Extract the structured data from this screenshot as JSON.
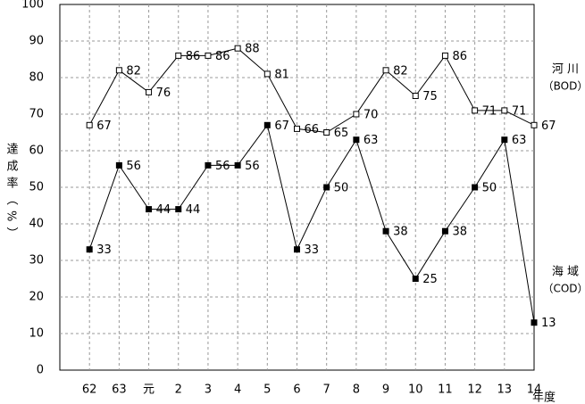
{
  "chart_data": {
    "type": "line",
    "x_label": "年度",
    "y_label": "達成率（%）",
    "categories": [
      "62",
      "63",
      "元",
      "2",
      "3",
      "4",
      "5",
      "6",
      "7",
      "8",
      "9",
      "10",
      "11",
      "12",
      "13",
      "14"
    ],
    "series": [
      {
        "name": "河 川",
        "code": "（BOD）",
        "color": "#000000",
        "marker": "open-square",
        "values": [
          67,
          82,
          76,
          86,
          86,
          88,
          81,
          66,
          65,
          70,
          82,
          75,
          86,
          71,
          71,
          67
        ]
      },
      {
        "name": "海 域",
        "code": "（COD）",
        "color": "#000000",
        "marker": "filled-square",
        "values": [
          33,
          56,
          44,
          44,
          56,
          56,
          67,
          33,
          50,
          63,
          38,
          25,
          38,
          50,
          63,
          13
        ]
      }
    ],
    "ylim": [
      0,
      100
    ],
    "yticks": [
      0,
      10,
      20,
      30,
      40,
      50,
      60,
      70,
      80,
      90,
      100
    ],
    "grid": true
  }
}
